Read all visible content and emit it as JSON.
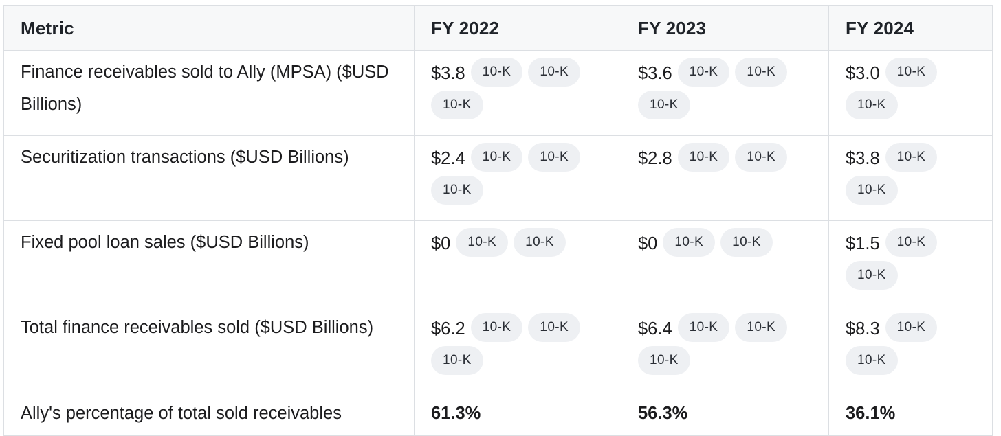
{
  "table": {
    "headers": [
      "Metric",
      "FY 2022",
      "FY 2023",
      "FY 2024"
    ],
    "rows": [
      {
        "metric": "Finance receivables sold to Ally (MPSA) ($USD Billions)",
        "values": [
          {
            "value": "$3.8",
            "sources": [
              "10-K",
              "10-K",
              "10-K"
            ]
          },
          {
            "value": "$3.6",
            "sources": [
              "10-K",
              "10-K",
              "10-K"
            ]
          },
          {
            "value": "$3.0",
            "sources": [
              "10-K",
              "10-K"
            ]
          }
        ]
      },
      {
        "metric": "Securitization transactions ($USD Billions)",
        "values": [
          {
            "value": "$2.4",
            "sources": [
              "10-K",
              "10-K",
              "10-K"
            ]
          },
          {
            "value": "$2.8",
            "sources": [
              "10-K",
              "10-K"
            ]
          },
          {
            "value": "$3.8",
            "sources": [
              "10-K",
              "10-K"
            ]
          }
        ]
      },
      {
        "metric": "Fixed pool loan sales ($USD Billions)",
        "values": [
          {
            "value": "$0",
            "sources": [
              "10-K",
              "10-K"
            ]
          },
          {
            "value": "$0",
            "sources": [
              "10-K",
              "10-K"
            ]
          },
          {
            "value": "$1.5",
            "sources": [
              "10-K",
              "10-K"
            ]
          }
        ]
      },
      {
        "metric": "Total finance receivables sold ($USD Billions)",
        "values": [
          {
            "value": "$6.2",
            "sources": [
              "10-K",
              "10-K",
              "10-K"
            ]
          },
          {
            "value": "$6.4",
            "sources": [
              "10-K",
              "10-K",
              "10-K"
            ]
          },
          {
            "value": "$8.3",
            "sources": [
              "10-K",
              "10-K"
            ]
          }
        ]
      },
      {
        "metric": "Ally's percentage of total sold receivables",
        "values": [
          {
            "value": "61.3%",
            "sources": []
          },
          {
            "value": "56.3%",
            "sources": []
          },
          {
            "value": "36.1%",
            "sources": []
          }
        ]
      }
    ]
  }
}
